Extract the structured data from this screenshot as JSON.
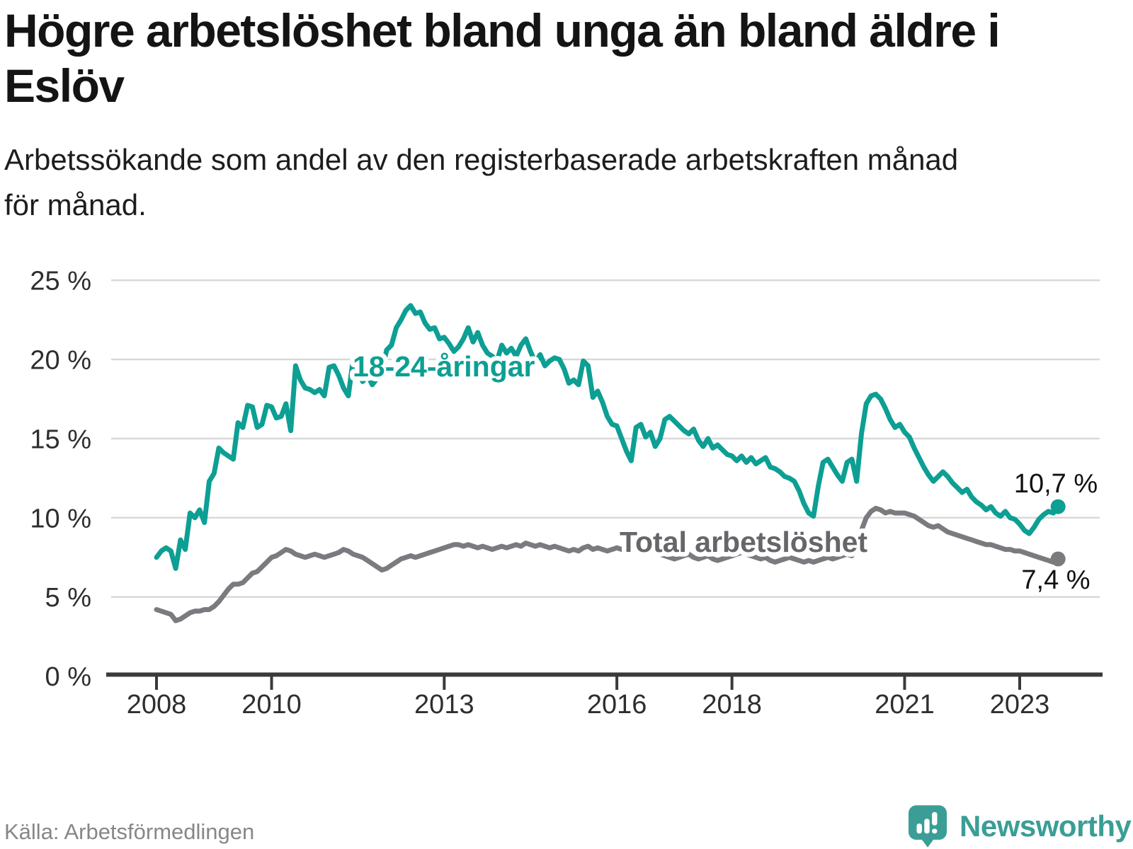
{
  "title": {
    "line1": "Högre arbetslöshet bland unga än bland äldre i",
    "line2": "Eslöv"
  },
  "subtitle": {
    "line1": "Arbetssökande som andel av den registerbaserade arbetskraften månad",
    "line2": "för månad."
  },
  "footer": {
    "source": "Källa: Arbetsförmedlingen"
  },
  "branding": {
    "name": "Newsworthy",
    "color": "#3a9e96",
    "icon": "newsworthy-speech-bubble-bar-chart-icon"
  },
  "chart_data": {
    "type": "line",
    "title": "Högre arbetslöshet bland unga än bland äldre i Eslöv",
    "subtitle": "Arbetssökande som andel av den registerbaserade arbetskraften månad för månad.",
    "frequency": "monthly",
    "x_start": "2008-01",
    "x_end": "2023-09",
    "ylim": [
      0,
      25
    ],
    "grid": "horizontal",
    "y_gridlines": [
      5,
      10,
      15,
      20,
      25
    ],
    "y_ticks": [
      {
        "label": "0 %",
        "value": 0
      },
      {
        "label": "5 %",
        "value": 5
      },
      {
        "label": "10 %",
        "value": 10
      },
      {
        "label": "15 %",
        "value": 15
      },
      {
        "label": "20 %",
        "value": 20
      },
      {
        "label": "25 %",
        "value": 25
      }
    ],
    "x_ticks": [
      {
        "label": "2008",
        "year": 2008
      },
      {
        "label": "2010",
        "year": 2010
      },
      {
        "label": "2013",
        "year": 2013
      },
      {
        "label": "2016",
        "year": 2016
      },
      {
        "label": "2018",
        "year": 2018
      },
      {
        "label": "2021",
        "year": 2021
      },
      {
        "label": "2023",
        "year": 2023
      }
    ],
    "series": [
      {
        "name": "18-24-åringar",
        "color": "#0d9f93",
        "label_color": "#0d9f93",
        "end_value": 10.7,
        "end_label": "10,7 %",
        "values": [
          7.5,
          7.9,
          8.1,
          7.9,
          6.8,
          8.6,
          8.0,
          10.3,
          10.0,
          10.5,
          9.7,
          12.3,
          12.8,
          14.4,
          14.1,
          13.9,
          13.7,
          16.0,
          15.7,
          17.1,
          17.0,
          15.7,
          15.9,
          17.1,
          17.0,
          16.3,
          16.4,
          17.2,
          15.5,
          19.6,
          18.7,
          18.2,
          18.1,
          17.9,
          18.1,
          17.7,
          19.5,
          19.6,
          19.0,
          18.2,
          17.7,
          20.0,
          19.2,
          18.6,
          19.0,
          18.4,
          18.8,
          19.3,
          20.6,
          20.9,
          22.0,
          22.5,
          23.1,
          23.4,
          22.9,
          23.0,
          22.3,
          21.9,
          22.0,
          21.3,
          21.4,
          21.0,
          20.5,
          20.8,
          21.3,
          22.0,
          21.1,
          21.7,
          20.9,
          20.4,
          20.2,
          19.9,
          20.9,
          20.4,
          20.7,
          20.2,
          20.9,
          21.3,
          20.5,
          19.8,
          20.3,
          19.6,
          19.9,
          20.1,
          20.0,
          19.4,
          18.5,
          18.7,
          18.4,
          19.9,
          19.6,
          17.6,
          18.0,
          17.3,
          16.4,
          15.9,
          15.8,
          15.0,
          14.2,
          13.6,
          15.7,
          15.9,
          15.1,
          15.4,
          14.5,
          15.0,
          16.2,
          16.4,
          16.1,
          15.8,
          15.5,
          15.3,
          15.6,
          14.9,
          14.5,
          15.0,
          14.4,
          14.6,
          14.3,
          14.0,
          13.9,
          13.6,
          13.9,
          13.5,
          13.8,
          13.4,
          13.6,
          13.8,
          13.2,
          13.1,
          12.9,
          12.6,
          12.5,
          12.3,
          11.7,
          10.9,
          10.3,
          10.1,
          12.0,
          13.5,
          13.7,
          13.2,
          12.7,
          12.3,
          13.5,
          13.7,
          12.3,
          15.3,
          17.2,
          17.7,
          17.8,
          17.5,
          16.9,
          16.2,
          15.7,
          15.9,
          15.4,
          15.1,
          14.4,
          13.8,
          13.2,
          12.7,
          12.3,
          12.6,
          12.9,
          12.6,
          12.2,
          11.9,
          11.6,
          11.8,
          11.3,
          11.0,
          10.8,
          10.5,
          10.7,
          10.3,
          10.1,
          10.4,
          10.0,
          9.9,
          9.6,
          9.2,
          9.0,
          9.4,
          9.9,
          10.2,
          10.4,
          10.3,
          10.7
        ]
      },
      {
        "name": "Total arbetslöshet",
        "color": "#7a7b7f",
        "label_color": "#66666a",
        "end_value": 7.4,
        "end_label": "7,4 %",
        "values": [
          4.2,
          4.1,
          4.0,
          3.9,
          3.5,
          3.6,
          3.8,
          4.0,
          4.1,
          4.1,
          4.2,
          4.2,
          4.4,
          4.7,
          5.1,
          5.5,
          5.8,
          5.8,
          5.9,
          6.2,
          6.5,
          6.6,
          6.9,
          7.2,
          7.5,
          7.6,
          7.8,
          8.0,
          7.9,
          7.7,
          7.6,
          7.5,
          7.6,
          7.7,
          7.6,
          7.5,
          7.6,
          7.7,
          7.8,
          8.0,
          7.9,
          7.7,
          7.6,
          7.5,
          7.3,
          7.1,
          6.9,
          6.7,
          6.8,
          7.0,
          7.2,
          7.4,
          7.5,
          7.6,
          7.5,
          7.6,
          7.7,
          7.8,
          7.9,
          8.0,
          8.1,
          8.2,
          8.3,
          8.3,
          8.2,
          8.3,
          8.2,
          8.1,
          8.2,
          8.1,
          8.0,
          8.1,
          8.2,
          8.1,
          8.2,
          8.3,
          8.2,
          8.4,
          8.3,
          8.2,
          8.3,
          8.2,
          8.1,
          8.2,
          8.1,
          8.0,
          7.9,
          8.0,
          7.9,
          8.1,
          8.2,
          8.0,
          8.1,
          8.0,
          7.9,
          8.0,
          8.1,
          8.0,
          8.1,
          8.0,
          7.9,
          8.0,
          8.1,
          7.9,
          7.8,
          7.7,
          7.6,
          7.5,
          7.4,
          7.5,
          7.6,
          7.7,
          7.5,
          7.4,
          7.5,
          7.6,
          7.4,
          7.3,
          7.4,
          7.5,
          7.6,
          7.7,
          7.8,
          7.7,
          7.6,
          7.5,
          7.4,
          7.5,
          7.3,
          7.2,
          7.3,
          7.4,
          7.5,
          7.4,
          7.3,
          7.2,
          7.3,
          7.2,
          7.3,
          7.4,
          7.5,
          7.4,
          7.5,
          7.6,
          7.7,
          7.6,
          8.0,
          9.2,
          10.0,
          10.4,
          10.6,
          10.5,
          10.3,
          10.4,
          10.3,
          10.3,
          10.3,
          10.2,
          10.1,
          9.9,
          9.7,
          9.5,
          9.4,
          9.5,
          9.3,
          9.1,
          9.0,
          8.9,
          8.8,
          8.7,
          8.6,
          8.5,
          8.4,
          8.3,
          8.3,
          8.2,
          8.1,
          8.0,
          8.0,
          7.9,
          7.9,
          7.8,
          7.7,
          7.6,
          7.5,
          7.4,
          7.3,
          7.2,
          7.4
        ]
      }
    ]
  }
}
